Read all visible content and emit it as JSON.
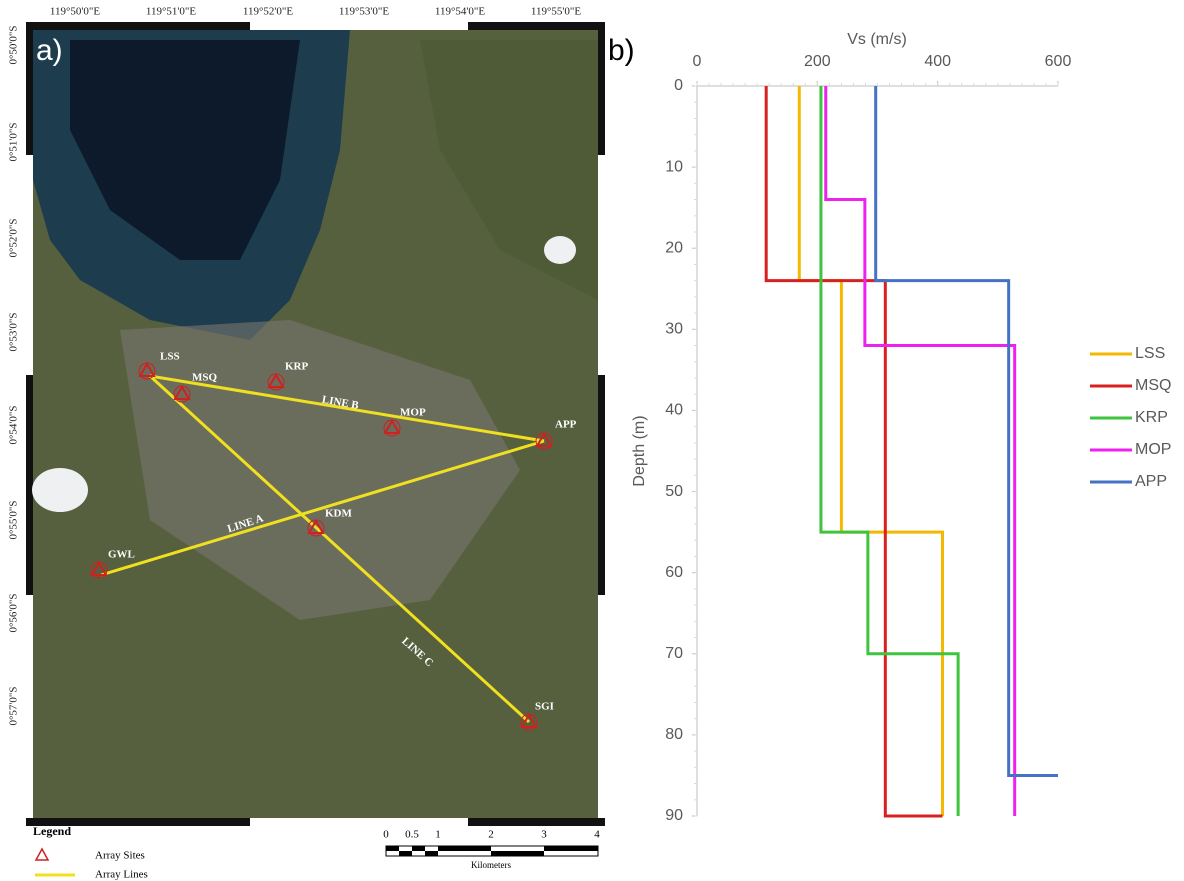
{
  "panel_a": {
    "label": "a)",
    "lon_labels": [
      "119°50'0\"E",
      "119°51'0\"E",
      "119°52'0\"E",
      "119°53'0\"E",
      "119°54'0\"E",
      "119°55'0\"E"
    ],
    "lat_labels": [
      "0°50'0\"S",
      "0°51'0\"S",
      "0°52'0\"S",
      "0°53'0\"S",
      "0°54'0\"S",
      "0°55'0\"S",
      "0°56'0\"S",
      "0°57'0\"S"
    ],
    "sites": [
      "LSS",
      "MSQ",
      "KRP",
      "MOP",
      "APP",
      "KDM",
      "GWL",
      "SGI"
    ],
    "lines": [
      "LINE A",
      "LINE B",
      "LINE C"
    ],
    "legend": {
      "title": "Legend",
      "items": [
        "Array Sites",
        "Array Lines"
      ]
    },
    "scale": {
      "labels": [
        "0",
        "0.5",
        "1",
        "2",
        "3",
        "4"
      ],
      "unit": "Kilometers"
    }
  },
  "chart_data": {
    "type": "line",
    "panel_label": "b)",
    "x_label": "Vs (m/s)",
    "y_label": "Depth (m)",
    "xlim": [
      0,
      600
    ],
    "xticks": [
      0,
      200,
      400,
      600
    ],
    "ylim": [
      0,
      90
    ],
    "yticks": [
      0,
      10,
      20,
      30,
      40,
      50,
      60,
      70,
      80,
      90
    ],
    "y_inverted": true,
    "x_axis_position": "top",
    "legend": "right",
    "series": [
      {
        "name": "LSS",
        "color": "#f5b800",
        "x": [
          170,
          170,
          240,
          240,
          408,
          408
        ],
        "values": [
          0,
          24,
          24,
          55,
          55,
          90
        ]
      },
      {
        "name": "MSQ",
        "color": "#d92020",
        "x": [
          115,
          115,
          313,
          313,
          408
        ],
        "values": [
          0,
          24,
          24,
          90,
          90
        ]
      },
      {
        "name": "KRP",
        "color": "#3ec43e",
        "x": [
          206,
          206,
          284,
          284,
          434,
          434
        ],
        "values": [
          0,
          55,
          55,
          70,
          70,
          90
        ]
      },
      {
        "name": "MOP",
        "color": "#ee22ee",
        "x": [
          214,
          214,
          279,
          279,
          528,
          528
        ],
        "values": [
          0,
          14,
          14,
          32,
          32,
          90
        ]
      },
      {
        "name": "APP",
        "color": "#4472c4",
        "x": [
          297,
          297,
          518,
          518,
          600
        ],
        "values": [
          0,
          24,
          24,
          85,
          85
        ]
      }
    ]
  }
}
